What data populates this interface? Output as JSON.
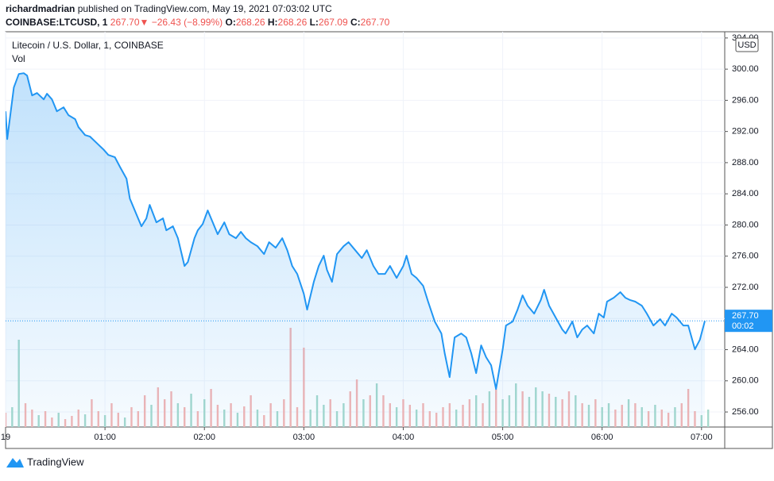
{
  "header": {
    "author": "richardmadrian",
    "published": "published on TradingView.com, May 19, 2021 07:03:02 UTC",
    "symbol": "COINBASE:LTCUSD, 1",
    "last": "267.70",
    "arrow": "▼",
    "change": "−26.43 (−8.99%)",
    "ohlc": [
      {
        "key": "O:",
        "value": "268.26"
      },
      {
        "key": "H:",
        "value": "268.26"
      },
      {
        "key": "L:",
        "value": "267.09"
      },
      {
        "key": "C:",
        "value": "267.70"
      }
    ]
  },
  "chart_data": {
    "type": "area",
    "legend": "Litecoin / U.S. Dollar, 1, COINBASE",
    "volume_label": "Vol",
    "currency": "USD",
    "color": "#2196f3",
    "last_price_label": "267.70",
    "countdown": "00:02",
    "grid": true,
    "x": [
      0,
      1,
      5,
      8,
      11,
      13,
      16,
      19,
      23,
      25,
      28,
      31,
      35,
      38,
      42,
      44,
      48,
      51,
      55,
      59,
      62,
      66,
      69,
      73,
      75,
      79,
      82,
      85,
      87,
      91,
      95,
      97,
      101,
      104,
      108,
      110,
      114,
      116,
      119,
      122,
      125,
      128,
      132,
      135,
      139,
      142,
      145,
      148,
      152,
      156,
      159,
      163,
      167,
      170,
      173,
      176,
      180,
      182,
      186,
      189,
      192,
      194,
      197,
      200,
      204,
      207,
      211,
      215,
      218,
      222,
      225,
      229,
      232,
      236,
      240,
      242,
      245,
      248,
      252,
      255,
      259,
      263,
      265,
      268,
      271,
      275,
      278,
      281,
      284,
      287,
      290,
      293,
      296,
      300,
      302,
      306,
      309,
      312,
      315,
      319,
      323,
      325,
      328,
      332,
      336,
      338,
      342,
      345,
      348,
      351,
      355,
      358,
      361,
      363,
      367,
      371,
      374,
      377,
      380,
      384,
      387,
      391,
      395,
      398,
      402,
      405,
      409,
      412,
      416,
      419,
      422
    ],
    "values": [
      294.59,
      291.03,
      297.65,
      299.38,
      299.48,
      299.18,
      296.63,
      296.94,
      296.12,
      296.84,
      296.12,
      294.59,
      295.1,
      294.09,
      293.58,
      292.56,
      291.54,
      291.34,
      290.52,
      289.71,
      288.99,
      288.69,
      287.47,
      285.94,
      283.39,
      281.36,
      279.83,
      280.85,
      282.58,
      280.34,
      280.85,
      279.32,
      279.83,
      278.3,
      274.74,
      275.25,
      278.3,
      279.32,
      280.13,
      281.87,
      280.34,
      278.81,
      280.34,
      278.81,
      278.3,
      279.12,
      278.3,
      277.79,
      277.28,
      276.27,
      277.79,
      277.08,
      278.3,
      276.77,
      274.74,
      273.72,
      271.17,
      269.14,
      272.7,
      274.74,
      276.06,
      274.23,
      272.7,
      276.27,
      277.28,
      277.79,
      276.77,
      275.76,
      276.77,
      274.74,
      273.72,
      273.72,
      274.74,
      273.21,
      274.74,
      276.06,
      273.72,
      273.21,
      272.19,
      270.16,
      267.61,
      266.08,
      263.54,
      260.48,
      265.57,
      266.08,
      265.57,
      263.54,
      260.99,
      264.55,
      263.03,
      262.01,
      258.95,
      264.04,
      267.1,
      267.61,
      269.14,
      270.97,
      269.65,
      268.63,
      270.36,
      271.68,
      269.65,
      268.12,
      266.59,
      266.08,
      267.61,
      265.57,
      266.59,
      267.1,
      266.08,
      268.63,
      268.12,
      270.16,
      270.66,
      271.38,
      270.66,
      270.36,
      270.16,
      269.65,
      268.63,
      267.1,
      267.91,
      267.1,
      268.63,
      268.12,
      267.1,
      267.1,
      264.04,
      265.27,
      267.7
    ],
    "xlim": [
      0,
      434
    ],
    "xticks": [
      {
        "value": 0,
        "label": "19"
      },
      {
        "value": 60,
        "label": "01:00"
      },
      {
        "value": 120,
        "label": "02:00"
      },
      {
        "value": 180,
        "label": "03:00"
      },
      {
        "value": 240,
        "label": "04:00"
      },
      {
        "value": 300,
        "label": "05:00"
      },
      {
        "value": 360,
        "label": "06:00"
      },
      {
        "value": 420,
        "label": "07:00"
      }
    ],
    "ylim": [
      254.07,
      304.8
    ],
    "yticks": [
      {
        "value": 256,
        "label": "256.00"
      },
      {
        "value": 260,
        "label": "260.00"
      },
      {
        "value": 264,
        "label": "264.00"
      },
      {
        "value": 268,
        "label": "268.00"
      },
      {
        "value": 272,
        "label": "272.00"
      },
      {
        "value": 276,
        "label": "276.00"
      },
      {
        "value": 280,
        "label": "280.00"
      },
      {
        "value": 284,
        "label": "284.00"
      },
      {
        "value": 288,
        "label": "288.00"
      },
      {
        "value": 292,
        "label": "292.00"
      },
      {
        "value": 296,
        "label": "296.00"
      },
      {
        "value": 300,
        "label": "300.00"
      },
      {
        "value": 304,
        "label": "304.00"
      }
    ],
    "volume": {
      "x": [
        0,
        4,
        8,
        12,
        16,
        20,
        24,
        28,
        32,
        36,
        40,
        44,
        48,
        52,
        56,
        60,
        64,
        68,
        72,
        76,
        80,
        84,
        88,
        92,
        96,
        100,
        104,
        108,
        112,
        116,
        120,
        124,
        128,
        132,
        136,
        140,
        144,
        148,
        152,
        156,
        160,
        164,
        168,
        172,
        176,
        180,
        184,
        188,
        192,
        196,
        200,
        204,
        208,
        212,
        216,
        220,
        224,
        228,
        232,
        236,
        240,
        244,
        248,
        252,
        256,
        260,
        264,
        268,
        272,
        276,
        280,
        284,
        288,
        292,
        296,
        300,
        304,
        308,
        312,
        316,
        320,
        324,
        328,
        332,
        336,
        340,
        344,
        348,
        352,
        356,
        360,
        364,
        368,
        372,
        376,
        380,
        384,
        388,
        392,
        396,
        400,
        404,
        408,
        412,
        416,
        420,
        424
      ],
      "values": [
        18,
        25,
        110,
        30,
        22,
        15,
        20,
        12,
        18,
        10,
        14,
        22,
        16,
        35,
        20,
        15,
        30,
        18,
        12,
        25,
        20,
        40,
        28,
        50,
        35,
        45,
        30,
        25,
        42,
        20,
        35,
        48,
        28,
        22,
        30,
        18,
        26,
        40,
        22,
        15,
        30,
        20,
        35,
        125,
        25,
        100,
        22,
        40,
        28,
        35,
        20,
        30,
        45,
        60,
        35,
        40,
        55,
        40,
        30,
        25,
        35,
        28,
        22,
        30,
        20,
        18,
        25,
        30,
        22,
        28,
        35,
        40,
        30,
        45,
        48,
        35,
        40,
        55,
        45,
        38,
        50,
        45,
        42,
        38,
        35,
        45,
        40,
        30,
        28,
        35,
        25,
        30,
        22,
        28,
        35,
        30,
        25,
        20,
        28,
        22,
        18,
        25,
        30,
        48,
        20,
        15,
        22
      ],
      "colors": [
        "#f5b5b3",
        "#a6d9cc",
        "#a6d9cc",
        "#f5b5b3",
        "#f5b5b3",
        "#a6d9cc",
        "#f5b5b3",
        "#f5b5b3",
        "#a6d9cc",
        "#f5b5b3",
        "#f5b5b3",
        "#f5b5b3",
        "#a6d9cc",
        "#f5b5b3",
        "#f5b5b3",
        "#a6d9cc",
        "#f5b5b3",
        "#f5b5b3",
        "#a6d9cc",
        "#f5b5b3",
        "#f5b5b3",
        "#f5b5b3",
        "#a6d9cc",
        "#f5b5b3",
        "#f5b5b3",
        "#f5b5b3",
        "#a6d9cc",
        "#f5b5b3",
        "#a6d9cc",
        "#f5b5b3",
        "#a6d9cc",
        "#f5b5b3",
        "#f5b5b3",
        "#a6d9cc",
        "#f5b5b3",
        "#a6d9cc",
        "#f5b5b3",
        "#f5b5b3",
        "#a6d9cc",
        "#f5b5b3",
        "#f5b5b3",
        "#a6d9cc",
        "#f5b5b3",
        "#f5b5b3",
        "#f5b5b3",
        "#f5b5b3",
        "#a6d9cc",
        "#a6d9cc",
        "#a6d9cc",
        "#f5b5b3",
        "#a6d9cc",
        "#a6d9cc",
        "#f5b5b3",
        "#f5b5b3",
        "#a6d9cc",
        "#f5b5b3",
        "#a6d9cc",
        "#f5b5b3",
        "#f5b5b3",
        "#a6d9cc",
        "#f5b5b3",
        "#f5b5b3",
        "#a6d9cc",
        "#f5b5b3",
        "#f5b5b3",
        "#f5b5b3",
        "#f5b5b3",
        "#f5b5b3",
        "#a6d9cc",
        "#f5b5b3",
        "#f5b5b3",
        "#a6d9cc",
        "#f5b5b3",
        "#a6d9cc",
        "#f5b5b3",
        "#a6d9cc",
        "#a6d9cc",
        "#a6d9cc",
        "#f5b5b3",
        "#a6d9cc",
        "#a6d9cc",
        "#a6d9cc",
        "#f5b5b3",
        "#a6d9cc",
        "#f5b5b3",
        "#f5b5b3",
        "#a6d9cc",
        "#f5b5b3",
        "#a6d9cc",
        "#f5b5b3",
        "#a6d9cc",
        "#a6d9cc",
        "#f5b5b3",
        "#f5b5b3",
        "#a6d9cc",
        "#f5b5b3",
        "#a6d9cc",
        "#f5b5b3",
        "#a6d9cc",
        "#f5b5b3",
        "#f5b5b3",
        "#a6d9cc",
        "#f5b5b3",
        "#f5b5b3",
        "#f5b5b3",
        "#a6d9cc",
        "#a6d9cc"
      ]
    }
  },
  "footer": {
    "brand": "TradingView"
  }
}
